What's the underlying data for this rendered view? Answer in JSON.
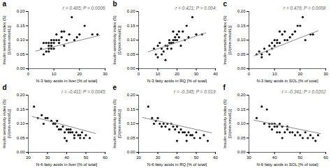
{
  "chart_data": [
    {
      "type": "scatter",
      "title": "a",
      "annotation": "r = 0.485; P = 0.0006",
      "xlabel": "N-3 fatty acids in liver [% of total]",
      "ylabel": "Insulin sensitivity index (S)\n[1/(min·nmol/L)]",
      "xlim": [
        0,
        30
      ],
      "ylim": [
        0.0,
        0.2
      ],
      "xticks": [
        0,
        10,
        20,
        30
      ],
      "yticks": [
        {
          "value": 0.0,
          "label": "0.00"
        },
        {
          "value": 0.05,
          "label": "0.05"
        },
        {
          "value": 0.1,
          "label": "0.10"
        },
        {
          "value": 0.15,
          "label": "0.15"
        },
        {
          "value": 0.2,
          "label": "0.20"
        }
      ],
      "series": [
        {
          "type": "scatter",
          "color": "#111111",
          "x": [
            5,
            6,
            6,
            7,
            7,
            8,
            8,
            8,
            8,
            9,
            9,
            9,
            9,
            10,
            10,
            10,
            11,
            11,
            12,
            12,
            13,
            13,
            14,
            14,
            15,
            16,
            17,
            18,
            19,
            20,
            22,
            25,
            27
          ],
          "values": [
            0.07,
            0.05,
            0.09,
            0.06,
            0.09,
            0.06,
            0.07,
            0.08,
            0.09,
            0.07,
            0.08,
            0.09,
            0.1,
            0.07,
            0.09,
            0.1,
            0.1,
            0.12,
            0.09,
            0.1,
            0.11,
            0.13,
            0.08,
            0.13,
            0.1,
            0.12,
            0.18,
            0.1,
            0.11,
            0.12,
            0.15,
            0.12,
            0.12
          ]
        },
        {
          "type": "line",
          "color": "#888888",
          "x": [
            3,
            28
          ],
          "values": [
            0.0616,
            0.1166
          ]
        }
      ]
    },
    {
      "type": "scatter",
      "title": "b",
      "annotation": "r = 0.421; P = 0.004",
      "xlabel": "N-3 fatty acids in RQ [% of total]",
      "ylabel": "Insulin sensitivity index (S)\n[1/(min·nmol/L)]",
      "xlim": [
        0,
        40
      ],
      "ylim": [
        0.0,
        0.2
      ],
      "xticks": [
        0,
        10,
        20,
        30,
        40
      ],
      "yticks": [
        {
          "value": 0.0,
          "label": "0.00"
        },
        {
          "value": 0.05,
          "label": "0.05"
        },
        {
          "value": 0.1,
          "label": "0.10"
        },
        {
          "value": 0.15,
          "label": "0.15"
        },
        {
          "value": 0.2,
          "label": "0.20"
        }
      ],
      "series": [
        {
          "type": "scatter",
          "color": "#111111",
          "x": [
            8,
            9,
            10,
            10,
            11,
            12,
            12,
            13,
            14,
            14,
            15,
            15,
            16,
            16,
            17,
            17,
            18,
            18,
            18,
            19,
            19,
            20,
            20,
            21,
            21,
            22,
            23,
            24,
            25,
            26,
            28,
            30,
            33
          ],
          "values": [
            0.07,
            0.05,
            0.04,
            0.08,
            0.09,
            0.05,
            0.07,
            0.06,
            0.03,
            0.08,
            0.07,
            0.08,
            0.09,
            0.1,
            0.07,
            0.09,
            0.09,
            0.1,
            0.13,
            0.1,
            0.11,
            0.1,
            0.12,
            0.11,
            0.13,
            0.08,
            0.13,
            0.1,
            0.15,
            0.11,
            0.18,
            0.12,
            0.12
          ]
        },
        {
          "type": "line",
          "color": "#888888",
          "x": [
            5,
            35
          ],
          "values": [
            0.059,
            0.125
          ]
        }
      ]
    },
    {
      "type": "scatter",
      "title": "c",
      "annotation": "r = 0.476; P = 0.0008",
      "xlabel": "N-3 fatty acids in SOL [% of total]",
      "ylabel": "Insulin sensitivity index (S)\n[1/(min·nmol/L)]",
      "xlim": [
        0,
        30
      ],
      "ylim": [
        0.0,
        0.2
      ],
      "xticks": [
        0,
        10,
        20,
        30
      ],
      "yticks": [
        {
          "value": 0.0,
          "label": "0.00"
        },
        {
          "value": 0.05,
          "label": "0.05"
        },
        {
          "value": 0.1,
          "label": "0.10"
        },
        {
          "value": 0.15,
          "label": "0.15"
        },
        {
          "value": 0.2,
          "label": "0.20"
        }
      ],
      "series": [
        {
          "type": "scatter",
          "color": "#111111",
          "x": [
            3,
            4,
            5,
            5,
            6,
            7,
            8,
            8,
            9,
            9,
            10,
            10,
            11,
            11,
            12,
            12,
            13,
            14,
            14,
            15,
            16,
            17,
            18,
            19,
            20,
            21,
            22,
            24,
            25
          ],
          "values": [
            0.05,
            0.06,
            0.05,
            0.04,
            0.07,
            0.06,
            0.05,
            0.08,
            0.07,
            0.09,
            0.08,
            0.1,
            0.09,
            0.1,
            0.09,
            0.13,
            0.12,
            0.1,
            0.13,
            0.1,
            0.11,
            0.12,
            0.13,
            0.15,
            0.15,
            0.18,
            0.1,
            0.12,
            0.12
          ]
        },
        {
          "type": "line",
          "color": "#888888",
          "x": [
            2,
            27
          ],
          "values": [
            0.045,
            0.1325
          ]
        }
      ]
    },
    {
      "type": "scatter",
      "title": "d",
      "annotation": "r = -0.411; P = 0.0045",
      "xlabel": "N-6 fatty acids in liver [% of total]",
      "ylabel": "Insulin sensitivity index (S)\n[1/(min·nmol/L)]",
      "xlim": [
        20,
        60
      ],
      "ylim": [
        0.0,
        0.2
      ],
      "xticks": [
        20,
        30,
        40,
        50,
        60
      ],
      "yticks": [
        {
          "value": 0.0,
          "label": "0.00"
        },
        {
          "value": 0.05,
          "label": "0.05"
        },
        {
          "value": 0.1,
          "label": "0.10"
        },
        {
          "value": 0.15,
          "label": "0.15"
        },
        {
          "value": 0.2,
          "label": "0.20"
        }
      ],
      "series": [
        {
          "type": "scatter",
          "color": "#111111",
          "x": [
            23,
            25,
            27,
            28,
            29,
            30,
            32,
            33,
            34,
            35,
            35,
            36,
            37,
            38,
            39,
            39,
            40,
            40,
            41,
            41,
            42,
            42,
            43,
            44,
            44,
            45,
            46,
            47,
            47,
            48,
            49,
            50,
            52
          ],
          "values": [
            0.16,
            0.12,
            0.13,
            0.1,
            0.12,
            0.12,
            0.11,
            0.1,
            0.1,
            0.09,
            0.11,
            0.08,
            0.08,
            0.09,
            0.07,
            0.05,
            0.08,
            0.04,
            0.07,
            0.08,
            0.08,
            0.07,
            0.07,
            0.06,
            0.05,
            0.07,
            0.06,
            0.06,
            0.05,
            0.07,
            0.05,
            0.06,
            0.05
          ]
        },
        {
          "type": "line",
          "color": "#888888",
          "x": [
            22,
            55
          ],
          "values": [
            0.1254,
            0.066
          ]
        }
      ]
    },
    {
      "type": "scatter",
      "title": "e",
      "annotation": "r = -0.345; P = 0.019",
      "xlabel": "N-6 fatty acids in RQ [% of total]",
      "ylabel": "Insulin sensitivity index (S)\n[1/(min·nmol/L)]",
      "xlim": [
        20,
        60
      ],
      "ylim": [
        0.0,
        0.2
      ],
      "xticks": [
        20,
        30,
        40,
        50,
        60
      ],
      "yticks": [
        {
          "value": 0.0,
          "label": "0.00"
        },
        {
          "value": 0.05,
          "label": "0.05"
        },
        {
          "value": 0.1,
          "label": "0.10"
        },
        {
          "value": 0.15,
          "label": "0.15"
        },
        {
          "value": 0.2,
          "label": "0.20"
        }
      ],
      "series": [
        {
          "type": "scatter",
          "color": "#111111",
          "x": [
            25,
            27,
            28,
            29,
            30,
            31,
            32,
            33,
            34,
            35,
            36,
            37,
            38,
            39,
            40,
            40,
            41,
            42,
            43,
            44,
            45,
            45,
            46,
            47,
            48,
            49,
            50,
            52,
            54,
            56
          ],
          "values": [
            0.16,
            0.12,
            0.1,
            0.11,
            0.12,
            0.1,
            0.09,
            0.1,
            0.09,
            0.1,
            0.08,
            0.1,
            0.09,
            0.08,
            0.09,
            0.04,
            0.07,
            0.08,
            0.07,
            0.07,
            0.06,
            0.04,
            0.07,
            0.06,
            0.06,
            0.05,
            0.07,
            0.05,
            0.06,
            0.04
          ]
        },
        {
          "type": "line",
          "color": "#888888",
          "x": [
            22,
            58
          ],
          "values": [
            0.122,
            0.068
          ]
        }
      ]
    },
    {
      "type": "scatter",
      "title": "f",
      "annotation": "r = -0.341; P = 0.0202",
      "xlabel": "N-6 fatty acids in SOL [% of total]",
      "ylabel": "Insulin sensitivity index (S)\n[1/(min·nmol/L)]",
      "xlim": [
        30,
        60
      ],
      "ylim": [
        0.0,
        0.2
      ],
      "xticks": [
        30,
        40,
        50,
        60
      ],
      "yticks": [
        {
          "value": 0.0,
          "label": "0.00"
        },
        {
          "value": 0.05,
          "label": "0.05"
        },
        {
          "value": 0.1,
          "label": "0.10"
        },
        {
          "value": 0.15,
          "label": "0.15"
        },
        {
          "value": 0.2,
          "label": "0.20"
        }
      ],
      "series": [
        {
          "type": "scatter",
          "color": "#111111",
          "x": [
            33,
            35,
            36,
            37,
            38,
            38,
            39,
            39,
            40,
            40,
            41,
            41,
            42,
            42,
            43,
            43,
            44,
            45,
            45,
            46,
            47,
            48,
            49,
            50,
            51,
            52,
            53,
            54,
            55,
            56,
            57
          ],
          "values": [
            0.12,
            0.16,
            0.1,
            0.15,
            0.09,
            0.1,
            0.08,
            0.1,
            0.09,
            0.1,
            0.09,
            0.07,
            0.1,
            0.07,
            0.09,
            0.05,
            0.07,
            0.09,
            0.08,
            0.07,
            0.07,
            0.06,
            0.07,
            0.06,
            0.05,
            0.07,
            0.05,
            0.06,
            0.05,
            0.04,
            0.06
          ]
        },
        {
          "type": "line",
          "color": "#888888",
          "x": [
            32,
            58
          ],
          "values": [
            0.1124,
            0.0656
          ]
        }
      ]
    }
  ]
}
